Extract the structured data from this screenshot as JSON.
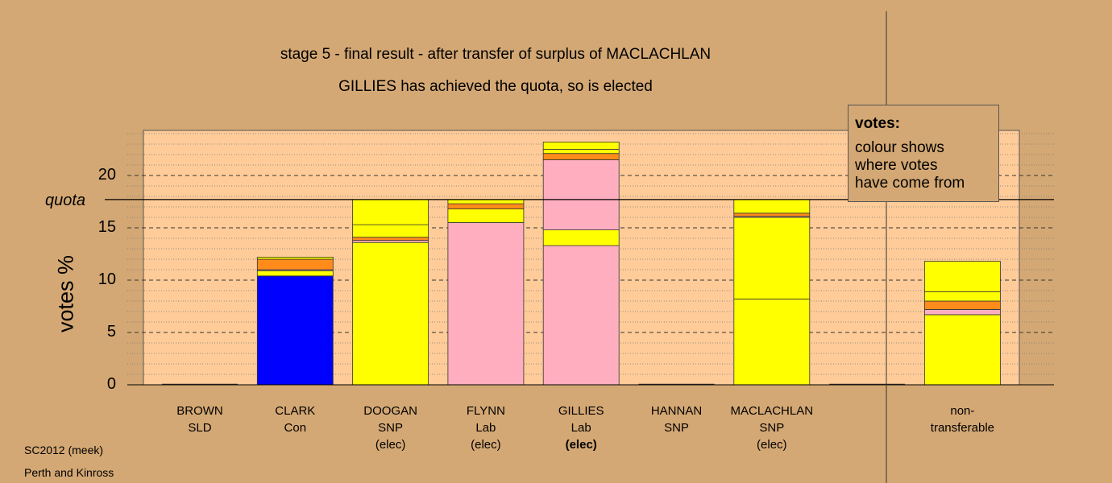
{
  "title": {
    "line1": "stage 5 - final result - after transfer of surplus of MACLACHLAN",
    "line2": "GILLIES has achieved the quota, so is elected"
  },
  "legend": {
    "title": "votes:",
    "text": "colour shows\nwhere votes\nhave come from"
  },
  "footnotes": {
    "source": "SC2012 (meek)",
    "area": "Perth and Kinross"
  },
  "axis": {
    "ylabel": "votes %",
    "quota_label": "quota"
  },
  "colors": {
    "background": "#d4a874",
    "plot_area": "#ffcc99",
    "snp": "#ffff00",
    "lab": "#ffaec0",
    "con": "#0000ff",
    "sld": "#ff8c1a",
    "other": "#ff8c1a"
  },
  "chart_data": {
    "type": "bar",
    "stacked": true,
    "ylim": [
      0,
      24.5
    ],
    "yticks": [
      0,
      5,
      10,
      15,
      20
    ],
    "quota": 17.7,
    "grid": true,
    "categories": [
      {
        "name": "BROWN",
        "party": "SLD",
        "status": ""
      },
      {
        "name": "CLARK",
        "party": "Con",
        "status": ""
      },
      {
        "name": "DOOGAN",
        "party": "SNP",
        "status": "(elec)"
      },
      {
        "name": "FLYNN",
        "party": "Lab",
        "status": "(elec)"
      },
      {
        "name": "GILLIES",
        "party": "Lab",
        "status": "(elec)",
        "status_bold": true
      },
      {
        "name": "HANNAN",
        "party": "SNP",
        "status": ""
      },
      {
        "name": "MACLACHLAN",
        "party": "SNP",
        "status": "(elec)"
      },
      {
        "name": "",
        "party": "",
        "status": ""
      },
      {
        "name": "non-",
        "party": "transferable",
        "status": ""
      }
    ],
    "stacks": [
      [],
      [
        {
          "color": "#0000ff",
          "value": 10.4
        },
        {
          "color": "#ffff00",
          "value": 0.5
        },
        {
          "color": "#ffaec0",
          "value": 0.1
        },
        {
          "color": "#ff8c1a",
          "value": 1.0
        },
        {
          "color": "#ffff00",
          "value": 0.2
        }
      ],
      [
        {
          "color": "#ffff00",
          "value": 13.6
        },
        {
          "color": "#ffaec0",
          "value": 0.2
        },
        {
          "color": "#ff8c1a",
          "value": 0.3
        },
        {
          "color": "#ffff00",
          "value": 1.2
        },
        {
          "color": "#ffff00",
          "value": 2.4
        }
      ],
      [
        {
          "color": "#ffaec0",
          "value": 15.5
        },
        {
          "color": "#ffff00",
          "value": 1.3
        },
        {
          "color": "#ff8c1a",
          "value": 0.5
        },
        {
          "color": "#ffff00",
          "value": 0.4
        }
      ],
      [
        {
          "color": "#ffaec0",
          "value": 13.3
        },
        {
          "color": "#ffff00",
          "value": 1.5
        },
        {
          "color": "#ffaec0",
          "value": 6.7
        },
        {
          "color": "#ff8c1a",
          "value": 0.6
        },
        {
          "color": "#ffff00",
          "value": 0.4
        },
        {
          "color": "#ffff00",
          "value": 0.7
        }
      ],
      [],
      [
        {
          "color": "#ffff00",
          "value": 8.2
        },
        {
          "color": "#ffff00",
          "value": 7.8
        },
        {
          "color": "#ffaec0",
          "value": 0.1
        },
        {
          "color": "#ff8c1a",
          "value": 0.3
        },
        {
          "color": "#ffff00",
          "value": 1.3
        }
      ],
      [],
      [
        {
          "color": "#ffff00",
          "value": 6.7
        },
        {
          "color": "#ffaec0",
          "value": 0.5
        },
        {
          "color": "#ff8c1a",
          "value": 0.8
        },
        {
          "color": "#ffff00",
          "value": 0.9
        },
        {
          "color": "#ffff00",
          "value": 2.9
        }
      ]
    ]
  }
}
